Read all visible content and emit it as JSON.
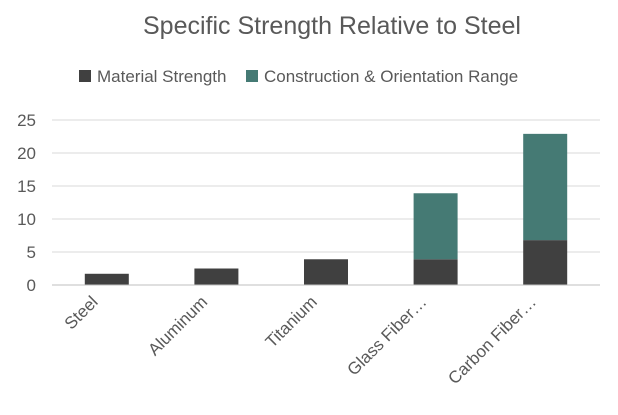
{
  "chart_data": {
    "type": "bar",
    "stacked": true,
    "title": "Specific Strength Relative to Steel",
    "xlabel": "",
    "ylabel": "",
    "ylim": [
      0,
      25
    ],
    "yticks": [
      0,
      5,
      10,
      15,
      20,
      25
    ],
    "grid": true,
    "legend_position": "top",
    "categories": [
      "Steel",
      "Aluminum",
      "Titanium",
      "Glass Fiber…",
      "Carbon Fiber…"
    ],
    "series": [
      {
        "name": "Material Strength",
        "color": "#404040",
        "values": [
          1.7,
          2.5,
          3.9,
          3.9,
          6.8
        ]
      },
      {
        "name": "Construction & Orientation Range",
        "color": "#457a74",
        "values": [
          0,
          0,
          0,
          10.0,
          16.1
        ]
      }
    ]
  }
}
